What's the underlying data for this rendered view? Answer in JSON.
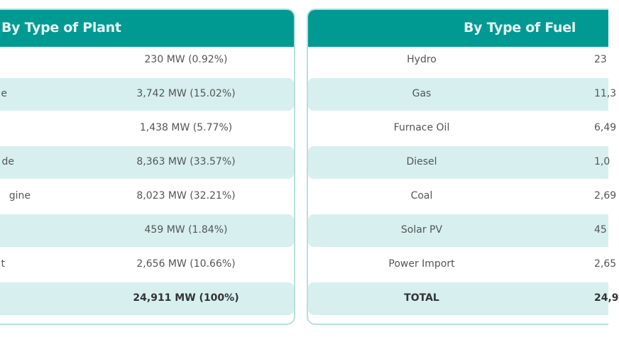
{
  "plant_table": {
    "title": "By Type of Plant",
    "rows": [
      {
        "label": "",
        "value": "230 MW (0.92%)"
      },
      {
        "label": "e",
        "value": "3,742 MW (15.02%)"
      },
      {
        "label": "",
        "value": "1,438 MW (5.77%)"
      },
      {
        "label": "de",
        "value": "8,363 MW (33.57%)"
      },
      {
        "label": "gine",
        "value": "8,023 MW (32.21%)"
      },
      {
        "label": "",
        "value": "459 MW (1.84%)"
      },
      {
        "label": "t",
        "value": "2,656 MW (10.66%)"
      },
      {
        "label": "",
        "value": "24,911 MW (100%)"
      }
    ]
  },
  "fuel_table": {
    "title": "By Type of Fuel",
    "rows": [
      {
        "label": "Hydro",
        "value": "23"
      },
      {
        "label": "Gas",
        "value": "11,3"
      },
      {
        "label": "Furnace Oil",
        "value": "6,49"
      },
      {
        "label": "Diesel",
        "value": "1,0"
      },
      {
        "label": "Coal",
        "value": "2,69"
      },
      {
        "label": "Solar PV",
        "value": "45"
      },
      {
        "label": "Power Import",
        "value": "2,65"
      },
      {
        "label": "TOTAL",
        "value": "24,9"
      }
    ]
  },
  "colors": {
    "header": "#009a93",
    "alt_row": "#d7efef",
    "border": "#b5e0dd"
  }
}
